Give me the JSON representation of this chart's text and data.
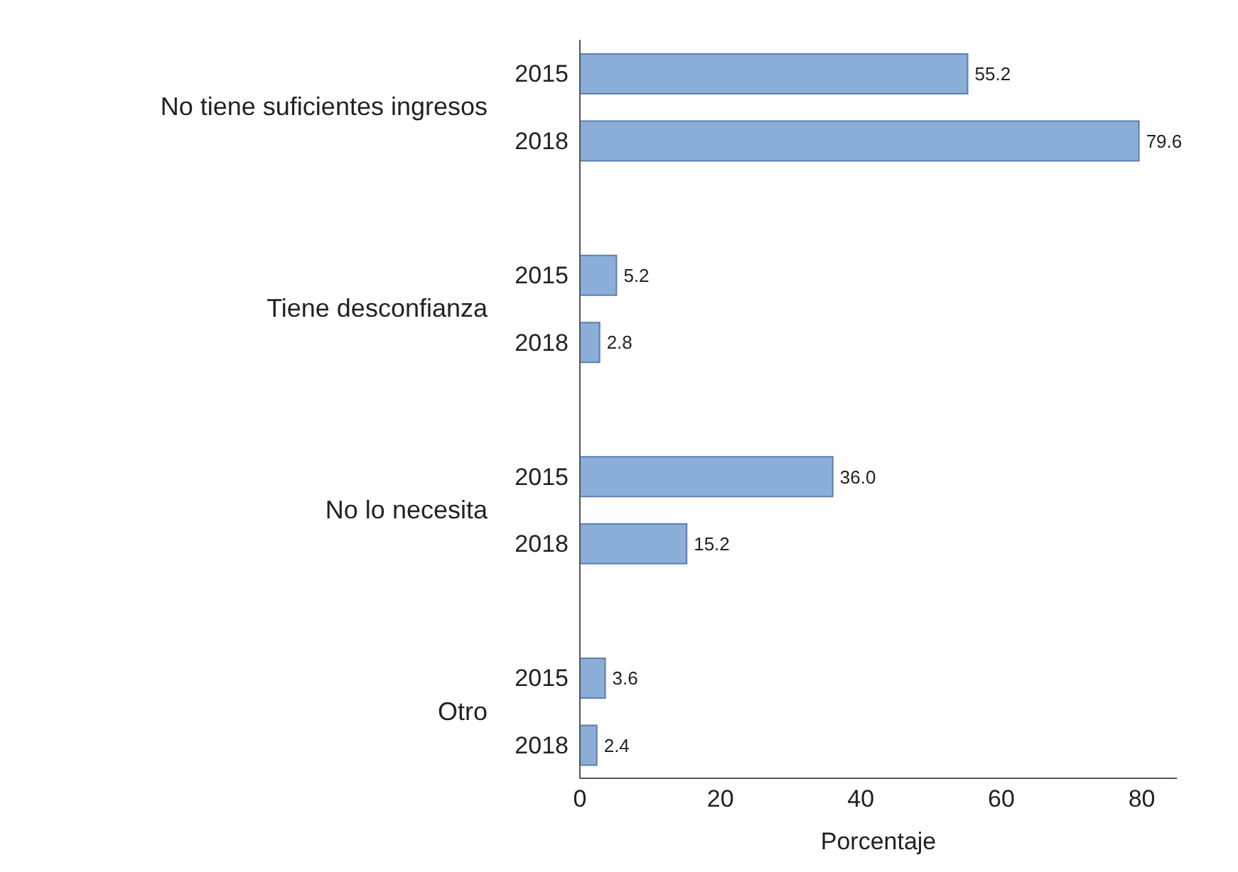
{
  "chart_data": {
    "type": "bar",
    "orientation": "horizontal",
    "xlabel": "Porcentaje",
    "categories": [
      "2015",
      "2018",
      "2015",
      "2018",
      "2015",
      "2018",
      "2015",
      "2018"
    ],
    "annotations": [
      "No tiene suficientes ingresos",
      "Tiene desconfianza",
      "No lo necesita",
      "Otro"
    ],
    "values": [
      55.2,
      79.6,
      5.2,
      2.8,
      36.0,
      15.2,
      3.6,
      2.4
    ],
    "value_labels": [
      "55.2",
      "79.6",
      "5.2",
      "2.8",
      "36.0",
      "15.2",
      "3.6",
      "2.4"
    ],
    "color": "#8aaed8",
    "xlim": [
      0,
      85
    ],
    "xticks": [
      0,
      20,
      40,
      60,
      80
    ]
  }
}
